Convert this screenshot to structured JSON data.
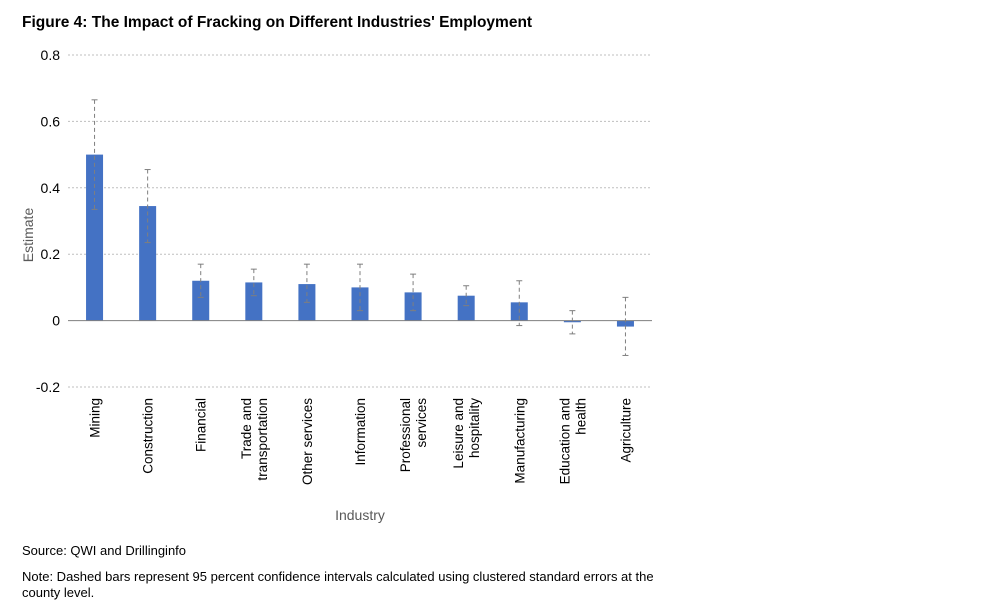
{
  "figure": {
    "title": "Figure 4: The Impact of Fracking on Different Industries' Employment",
    "source": "Source: QWI and Drillinginfo",
    "note": "Note: Dashed bars represent 95 percent confidence intervals calculated using clustered standard errors at the county level."
  },
  "chart_data": {
    "type": "bar",
    "title": "Figure 4: The Impact of Fracking on Different Industries' Employment",
    "xlabel": "Industry",
    "ylabel": "Estimate",
    "ylim": [
      -0.2,
      0.8
    ],
    "yticks": [
      -0.2,
      0,
      0.2,
      0.4,
      0.6,
      0.8
    ],
    "ytick_labels": [
      "-0.2",
      "0",
      "0.2",
      "0.4",
      "0.6",
      "0.8"
    ],
    "grid": true,
    "categories": [
      [
        "Mining"
      ],
      [
        "Construction"
      ],
      [
        "Financial"
      ],
      [
        "Trade and",
        "transportation"
      ],
      [
        "Other services"
      ],
      [
        "Information"
      ],
      [
        "Professional",
        "services"
      ],
      [
        "Leisure and",
        "hospitality"
      ],
      [
        "Manufacturing"
      ],
      [
        "Education and",
        "health"
      ],
      [
        "Agriculture"
      ]
    ],
    "values": [
      0.5,
      0.345,
      0.12,
      0.115,
      0.11,
      0.1,
      0.085,
      0.075,
      0.055,
      -0.005,
      -0.018
    ],
    "ci_low": [
      0.335,
      0.235,
      0.07,
      0.075,
      0.055,
      0.03,
      0.03,
      0.045,
      -0.015,
      -0.04,
      -0.105
    ],
    "ci_high": [
      0.665,
      0.455,
      0.17,
      0.155,
      0.17,
      0.17,
      0.14,
      0.105,
      0.12,
      0.03,
      0.07
    ],
    "bar_color": "#4472C4",
    "error_bar_color": "#7F7F7F",
    "grid_color": "#BFBFBF"
  }
}
